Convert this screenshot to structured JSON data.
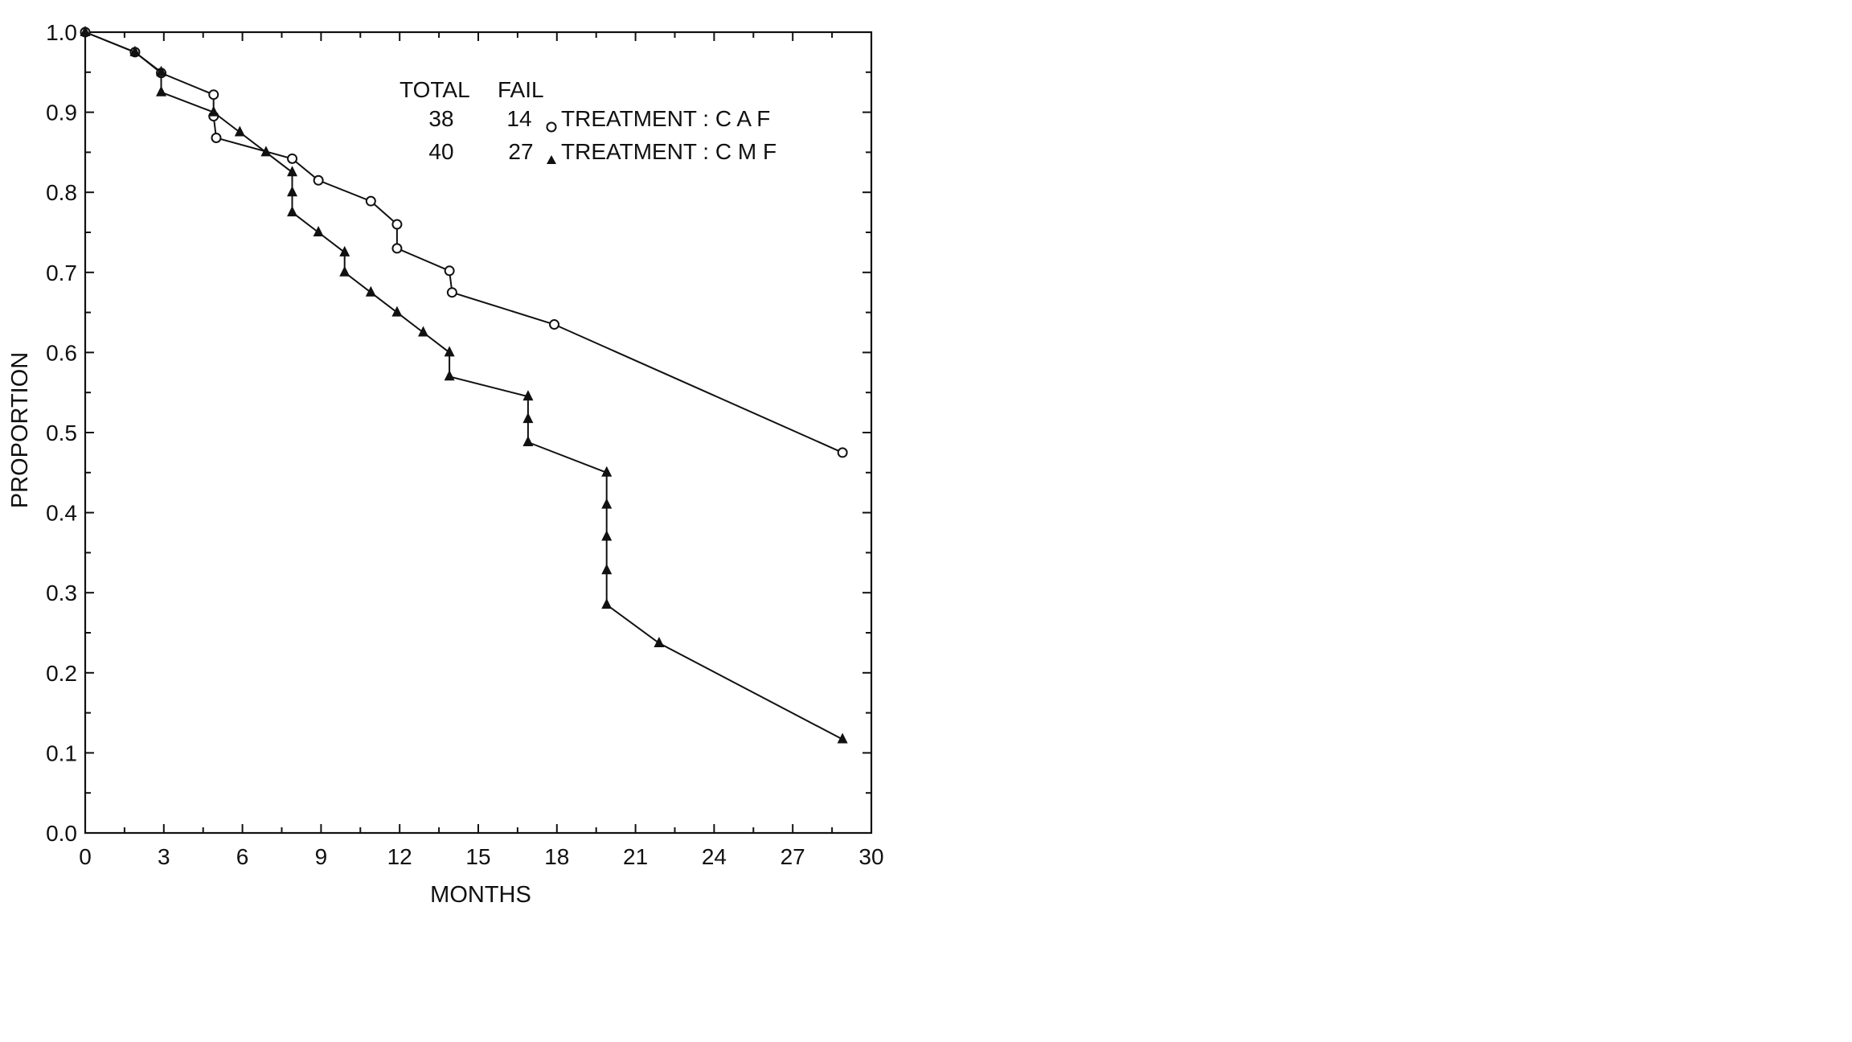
{
  "chart_data": {
    "type": "line",
    "xlabel": "MONTHS",
    "ylabel": "PROPORTION",
    "xlim": [
      0,
      30
    ],
    "ylim": [
      0.0,
      1.0
    ],
    "x_ticks": [
      "0",
      "3",
      "6",
      "9",
      "12",
      "15",
      "18",
      "21",
      "24",
      "27",
      "30"
    ],
    "y_ticks": [
      "0.0",
      "0.1",
      "0.2",
      "0.3",
      "0.4",
      "0.5",
      "0.6",
      "0.7",
      "0.8",
      "0.9",
      "1.0"
    ],
    "grid": false,
    "legend": {
      "header_total": "TOTAL",
      "header_fail": "FAIL",
      "entries": [
        {
          "total": "38",
          "fail": "14",
          "label": "TREATMENT : C A F",
          "marker": "open-circle"
        },
        {
          "total": "40",
          "fail": "27",
          "label": "TREATMENT : C M F",
          "marker": "filled-triangle"
        }
      ]
    },
    "series": [
      {
        "marker": "open-circle",
        "color": "#111111",
        "points": [
          [
            0,
            1.0
          ],
          [
            1.9,
            0.975
          ],
          [
            2.9,
            0.949
          ],
          [
            4.9,
            0.922
          ],
          [
            4.9,
            0.895
          ],
          [
            5.0,
            0.868
          ],
          [
            7.9,
            0.842
          ],
          [
            8.9,
            0.815
          ],
          [
            10.9,
            0.789
          ],
          [
            11.9,
            0.76
          ],
          [
            11.9,
            0.73
          ],
          [
            13.9,
            0.702
          ],
          [
            14.0,
            0.675
          ],
          [
            17.9,
            0.635
          ],
          [
            28.9,
            0.475
          ]
        ]
      },
      {
        "marker": "filled-triangle",
        "color": "#111111",
        "points": [
          [
            0,
            1.0
          ],
          [
            1.9,
            0.975
          ],
          [
            2.9,
            0.95
          ],
          [
            2.9,
            0.925
          ],
          [
            4.9,
            0.9
          ],
          [
            5.9,
            0.875
          ],
          [
            6.9,
            0.85
          ],
          [
            7.9,
            0.825
          ],
          [
            7.9,
            0.8
          ],
          [
            7.9,
            0.775
          ],
          [
            8.9,
            0.75
          ],
          [
            9.9,
            0.725
          ],
          [
            9.9,
            0.7
          ],
          [
            10.9,
            0.675
          ],
          [
            11.9,
            0.65
          ],
          [
            12.9,
            0.625
          ],
          [
            13.9,
            0.6
          ],
          [
            13.9,
            0.57
          ],
          [
            16.9,
            0.545
          ],
          [
            16.9,
            0.517
          ],
          [
            16.9,
            0.488
          ],
          [
            19.9,
            0.45
          ],
          [
            19.9,
            0.41
          ],
          [
            19.9,
            0.37
          ],
          [
            19.9,
            0.328
          ],
          [
            19.9,
            0.285
          ],
          [
            21.9,
            0.237
          ],
          [
            28.9,
            0.117
          ]
        ]
      }
    ]
  }
}
